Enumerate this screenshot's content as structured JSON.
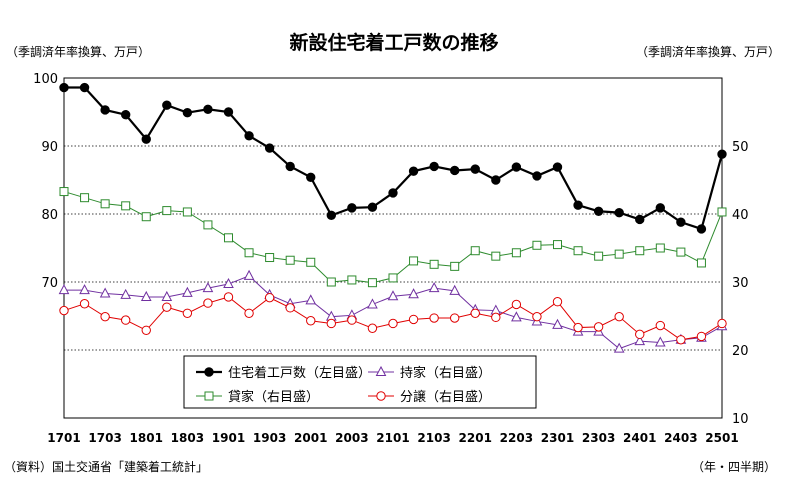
{
  "chart_data": {
    "type": "line",
    "title": "新設住宅着工戸数の推移",
    "left_axis_unit": "（季調済年率換算、万戸）",
    "right_axis_unit": "（季調済年率換算、万戸）",
    "source": "（資料）国土交通省「建築着工統計」",
    "x_unit": "（年・四半期）",
    "left_ylim": [
      50,
      100
    ],
    "right_ylim": [
      10,
      60
    ],
    "left_ticks": [
      "100",
      "90",
      "80",
      "70"
    ],
    "right_ticks": [
      "50",
      "40",
      "30",
      "20",
      "10"
    ],
    "x_tick_labels": [
      "1701",
      "1703",
      "1801",
      "1803",
      "1901",
      "1903",
      "2001",
      "2003",
      "2101",
      "2103",
      "2201",
      "2203",
      "2301",
      "2303",
      "2401",
      "2403",
      "2501"
    ],
    "x": [
      "1701",
      "1702",
      "1703",
      "1704",
      "1801",
      "1802",
      "1803",
      "1804",
      "1901",
      "1902",
      "1903",
      "1904",
      "2001",
      "2002",
      "2003",
      "2004",
      "2101",
      "2102",
      "2103",
      "2104",
      "2201",
      "2202",
      "2203",
      "2204",
      "2301",
      "2302",
      "2303",
      "2304",
      "2401",
      "2402",
      "2403",
      "2404",
      "2501"
    ],
    "grid": "horizontal-dotted",
    "legend_placement": "bottom-center",
    "series": [
      {
        "name": "住宅着工戸数（左目盛）",
        "axis": "left",
        "color": "#000000",
        "marker": "filled-circle",
        "values": [
          98.6,
          98.6,
          95.3,
          94.6,
          91.0,
          96.0,
          94.9,
          95.4,
          95.0,
          91.5,
          89.7,
          87.0,
          85.4,
          79.8,
          80.9,
          81.0,
          83.1,
          86.3,
          87.0,
          86.4,
          86.6,
          85.0,
          86.9,
          85.6,
          86.9,
          81.3,
          80.4,
          80.2,
          79.2,
          80.9,
          78.8,
          77.8,
          88.8
        ]
      },
      {
        "name": "持家（右目盛）",
        "axis": "right",
        "color": "#7030A0",
        "marker": "open-triangle",
        "values": [
          28.8,
          28.8,
          28.3,
          28.1,
          27.8,
          27.8,
          28.4,
          29.1,
          29.7,
          30.9,
          28.1,
          26.8,
          27.3,
          24.9,
          25.1,
          26.7,
          27.9,
          28.2,
          29.1,
          28.7,
          25.9,
          25.8,
          24.8,
          24.2,
          23.7,
          22.7,
          22.7,
          20.2,
          21.3,
          21.1,
          21.5,
          21.8,
          23.5
        ]
      },
      {
        "name": "貸家（右目盛）",
        "axis": "right",
        "color": "#2E8B2E",
        "marker": "open-square",
        "values": [
          43.3,
          42.4,
          41.5,
          41.2,
          39.6,
          40.5,
          40.3,
          38.4,
          36.5,
          34.3,
          33.6,
          33.2,
          32.9,
          30.0,
          30.3,
          29.9,
          30.6,
          33.1,
          32.6,
          32.3,
          34.6,
          33.8,
          34.3,
          35.4,
          35.5,
          34.6,
          33.8,
          34.1,
          34.6,
          35.0,
          34.4,
          32.8,
          40.3
        ]
      },
      {
        "name": "分譲（右目盛）",
        "axis": "right",
        "color": "#E00000",
        "marker": "open-circle",
        "values": [
          25.8,
          26.8,
          24.9,
          24.4,
          22.9,
          26.3,
          25.4,
          26.9,
          27.8,
          25.4,
          27.7,
          26.2,
          24.3,
          23.9,
          24.4,
          23.2,
          23.9,
          24.5,
          24.7,
          24.7,
          25.4,
          24.8,
          26.7,
          24.9,
          27.1,
          23.3,
          23.4,
          24.9,
          22.3,
          23.6,
          21.5,
          22.0,
          23.9
        ]
      }
    ]
  }
}
